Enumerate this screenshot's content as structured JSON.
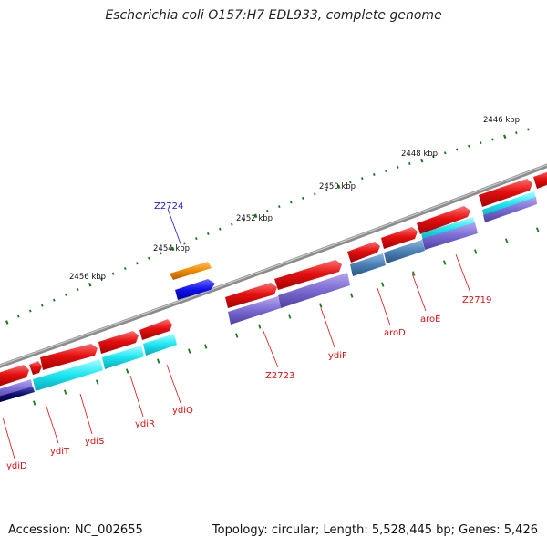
{
  "title": "Escherichia coli O157:H7 EDL933, complete genome",
  "footer": {
    "accession": "Accession: NC_002655",
    "topology": "Topology: circular; Length: 5,528,445 bp; Genes: 5,426"
  },
  "ticks": [
    "2446 kbp",
    "2448 kbp",
    "2450 kbp",
    "2452 kbp",
    "2454 kbp",
    "2456 kbp"
  ],
  "genes": [
    {
      "name": "Z2724",
      "color": "#1a1acc"
    },
    {
      "name": "Z2723",
      "color": "#dd1111"
    },
    {
      "name": "ydiF",
      "color": "#dd1111"
    },
    {
      "name": "aroD",
      "color": "#dd1111"
    },
    {
      "name": "aroE",
      "color": "#dd1111"
    },
    {
      "name": "Z2719",
      "color": "#dd1111"
    },
    {
      "name": "ydiD",
      "color": "#dd1111"
    },
    {
      "name": "ydiT",
      "color": "#dd1111"
    },
    {
      "name": "ydiS",
      "color": "#dd1111"
    },
    {
      "name": "ydiR",
      "color": "#dd1111"
    },
    {
      "name": "ydiQ",
      "color": "#dd1111"
    }
  ],
  "colors": {
    "backbone": "#888888",
    "cds_forward": "#e51010",
    "cds_reverse_orange": "#f08a00",
    "cds_reverse_blue": "#1010ee",
    "cog_cyan": "#18e6f0",
    "cog_violet": "#7a6ad2",
    "cog_steel": "#4a7fb4",
    "cog_navy": "#0b0b6e",
    "gc_tick": "#1a7a1a"
  }
}
